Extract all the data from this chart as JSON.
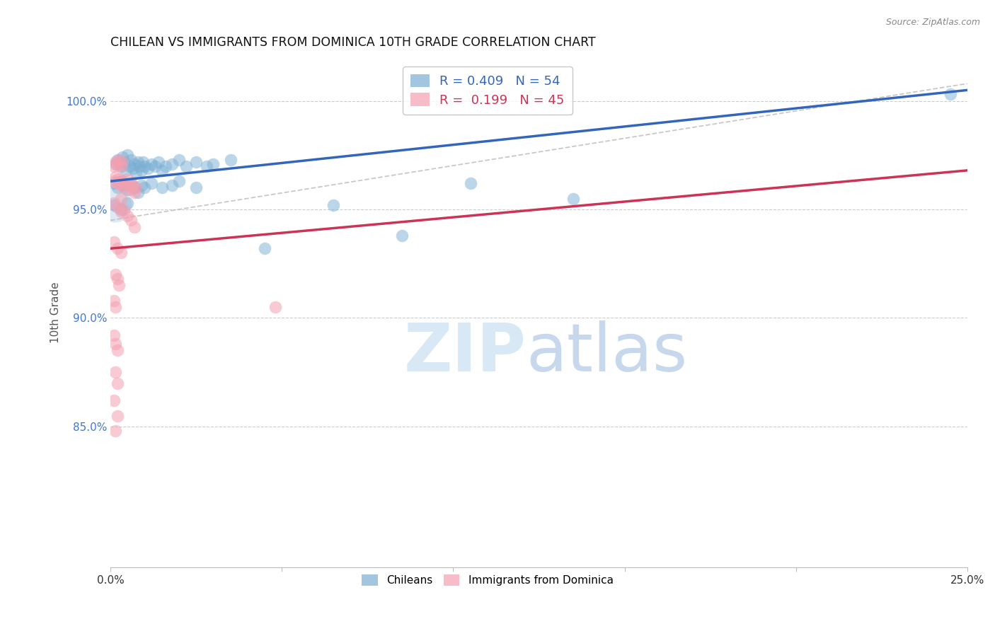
{
  "title": "CHILEAN VS IMMIGRANTS FROM DOMINICA 10TH GRADE CORRELATION CHART",
  "source": "Source: ZipAtlas.com",
  "ylabel": "10th Grade",
  "xlim": [
    0.0,
    25.0
  ],
  "ylim": [
    78.5,
    102.0
  ],
  "blue_R": 0.409,
  "blue_N": 54,
  "pink_R": 0.199,
  "pink_N": 45,
  "blue_color": "#7BAFD4",
  "pink_color": "#F4A0B0",
  "trendline_blue_color": "#3366BB",
  "trendline_pink_color": "#CC3355",
  "blue_scatter": [
    [
      0.15,
      97.1
    ],
    [
      0.2,
      97.3
    ],
    [
      0.3,
      97.0
    ],
    [
      0.35,
      97.4
    ],
    [
      0.4,
      97.2
    ],
    [
      0.45,
      96.8
    ],
    [
      0.5,
      97.5
    ],
    [
      0.55,
      97.0
    ],
    [
      0.6,
      97.3
    ],
    [
      0.65,
      96.9
    ],
    [
      0.7,
      97.1
    ],
    [
      0.75,
      96.7
    ],
    [
      0.8,
      97.2
    ],
    [
      0.85,
      97.0
    ],
    [
      0.9,
      96.8
    ],
    [
      0.95,
      97.2
    ],
    [
      1.0,
      97.0
    ],
    [
      1.1,
      96.9
    ],
    [
      1.2,
      97.1
    ],
    [
      1.3,
      97.0
    ],
    [
      1.4,
      97.2
    ],
    [
      1.5,
      96.8
    ],
    [
      1.6,
      97.0
    ],
    [
      1.8,
      97.1
    ],
    [
      2.0,
      97.3
    ],
    [
      2.2,
      97.0
    ],
    [
      2.5,
      97.2
    ],
    [
      2.8,
      97.0
    ],
    [
      3.0,
      97.1
    ],
    [
      3.5,
      97.3
    ],
    [
      0.1,
      96.2
    ],
    [
      0.2,
      96.0
    ],
    [
      0.3,
      96.3
    ],
    [
      0.4,
      96.1
    ],
    [
      0.5,
      95.9
    ],
    [
      0.6,
      96.2
    ],
    [
      0.7,
      96.0
    ],
    [
      0.8,
      95.8
    ],
    [
      0.9,
      96.1
    ],
    [
      1.0,
      96.0
    ],
    [
      1.2,
      96.2
    ],
    [
      1.5,
      96.0
    ],
    [
      1.8,
      96.1
    ],
    [
      2.0,
      96.3
    ],
    [
      2.5,
      96.0
    ],
    [
      0.1,
      95.2
    ],
    [
      0.3,
      95.0
    ],
    [
      0.5,
      95.3
    ],
    [
      6.5,
      95.2
    ],
    [
      10.5,
      96.2
    ],
    [
      13.5,
      95.5
    ],
    [
      24.5,
      100.3
    ],
    [
      4.5,
      93.2
    ],
    [
      8.5,
      93.8
    ]
  ],
  "pink_scatter": [
    [
      0.1,
      97.0
    ],
    [
      0.15,
      97.2
    ],
    [
      0.2,
      97.1
    ],
    [
      0.25,
      97.3
    ],
    [
      0.3,
      97.0
    ],
    [
      0.35,
      97.2
    ],
    [
      0.1,
      96.3
    ],
    [
      0.15,
      96.5
    ],
    [
      0.2,
      96.2
    ],
    [
      0.25,
      96.4
    ],
    [
      0.3,
      96.1
    ],
    [
      0.35,
      96.3
    ],
    [
      0.4,
      96.0
    ],
    [
      0.45,
      96.2
    ],
    [
      0.5,
      96.4
    ],
    [
      0.55,
      96.1
    ],
    [
      0.6,
      95.9
    ],
    [
      0.65,
      96.1
    ],
    [
      0.7,
      95.8
    ],
    [
      0.75,
      96.0
    ],
    [
      0.1,
      95.3
    ],
    [
      0.2,
      95.1
    ],
    [
      0.3,
      94.9
    ],
    [
      0.4,
      95.0
    ],
    [
      0.5,
      94.7
    ],
    [
      0.6,
      94.5
    ],
    [
      0.7,
      94.2
    ],
    [
      0.1,
      93.5
    ],
    [
      0.2,
      93.2
    ],
    [
      0.3,
      93.0
    ],
    [
      0.15,
      92.0
    ],
    [
      0.2,
      91.8
    ],
    [
      0.25,
      91.5
    ],
    [
      0.1,
      90.8
    ],
    [
      0.15,
      90.5
    ],
    [
      0.1,
      89.2
    ],
    [
      0.15,
      88.8
    ],
    [
      0.2,
      88.5
    ],
    [
      0.15,
      87.5
    ],
    [
      0.2,
      87.0
    ],
    [
      0.1,
      86.2
    ],
    [
      0.2,
      85.5
    ],
    [
      0.15,
      84.8
    ],
    [
      4.8,
      90.5
    ],
    [
      0.3,
      95.5
    ]
  ],
  "blue_line_x": [
    0.0,
    25.0
  ],
  "blue_line_y": [
    96.3,
    100.5
  ],
  "pink_line_x": [
    0.0,
    25.0
  ],
  "pink_line_y": [
    93.2,
    96.8
  ],
  "dash_line_x": [
    0.0,
    25.0
  ],
  "dash_line_y": [
    94.5,
    100.8
  ]
}
